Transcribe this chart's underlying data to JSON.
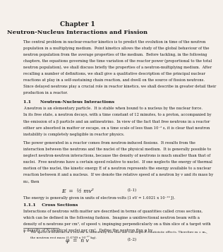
{
  "background_color": "#f5f0eb",
  "title1": "Chapter 1",
  "title2": "Neutron-Nucleus Interactions and Fission",
  "body_text": [
    "The central problem in nuclear-reactor kinetics is to predict the evolution in time of the neutron",
    "population in a multiplying medium.  Point kinetics allows the study of the global behaviour of the",
    "neutron population from the average properties of the medium.  Before tackling, in the following",
    "chapters, the equations governing the time variation of the reactor power (proportional to the total",
    "neutron population), we shall discuss briefly the properties of a neutron-multiplying medium.  After",
    "recalling a number of definitions, we shall give a qualitative description of the principal nuclear",
    "reactions at play in a self-sustaining chain reaction, and dwell on the source of fission neutrons.",
    "Since delayed neutrons play a crucial role in reactor kinetics, we shall describe in greater detail their",
    "production in a reactor."
  ],
  "section1_title": "1.1      Neutron-Nucleus Interactions",
  "section1_para1": [
    "A neutron is an elementary particle.  It is stable when bound to a nucleus by the nuclear force.",
    "In its free state, a neutron decays, with a time constant of 12 minutes, to a proton, accompanied by",
    "the emission of a β particle and an antineutrino.  In view of the fact that free neutrons in a reactor",
    "either are absorbed in matter or escape, on a time scale of less than 10⁻³ s, it is clear that neutron",
    "instability is completely negligible in reactor physics."
  ],
  "section1_para2": [
    "The power generated in a reactor comes from neutron-induced fissions.  It results from the",
    "interaction between the neutrons and the nuclei of the physical medium.  It is generally possible to",
    "neglect neutron-neutron interactions, because the density of neutrons is much smaller than that of",
    "nuclei.  Free neutrons have a certain speed relative to nuclei.  If one neglects the energy of thermal",
    "motion of the nuclei, the kinetic energy E of a neutron represents the energy available to a nuclear",
    "reaction between it and a nucleus.  If we denote the relative speed of a neutron by v and its mass by",
    "m₁, then"
  ],
  "equation1": "E  =  ½ mv²",
  "eq1_label": "(1-1)",
  "eq1_note": "The energy is generally given in units of electron-volts (1 eV = 1.6021 x 10⁻¹⁹ J).",
  "section2_title": "1.1.1    Cross Sections",
  "section2_para1": [
    "Interactions of neutrons with matter are described in terms of quantities called cross sections,",
    "which can be defined in the following fashion.  Imagine a unidirectional neutron beam with a",
    "density of n neutrons per cm³, of speed v, impinging perpendicularly on a thin slice of a target with",
    "a density of N identical nuclei per cm³.  Define the neutron flux φ by"
  ],
  "equation2": "φ  =  n v",
  "eq2_label": "(1-2)",
  "footnote_num": "1",
  "footnote_text": "The speed of neutrons in a reactor is sufficiently low that one can neglect relativistic effects. Therefore m = m₀,",
  "footnote_text2": "the neutron rest mass (1.6749 x 10⁻²⁷ kg)."
}
